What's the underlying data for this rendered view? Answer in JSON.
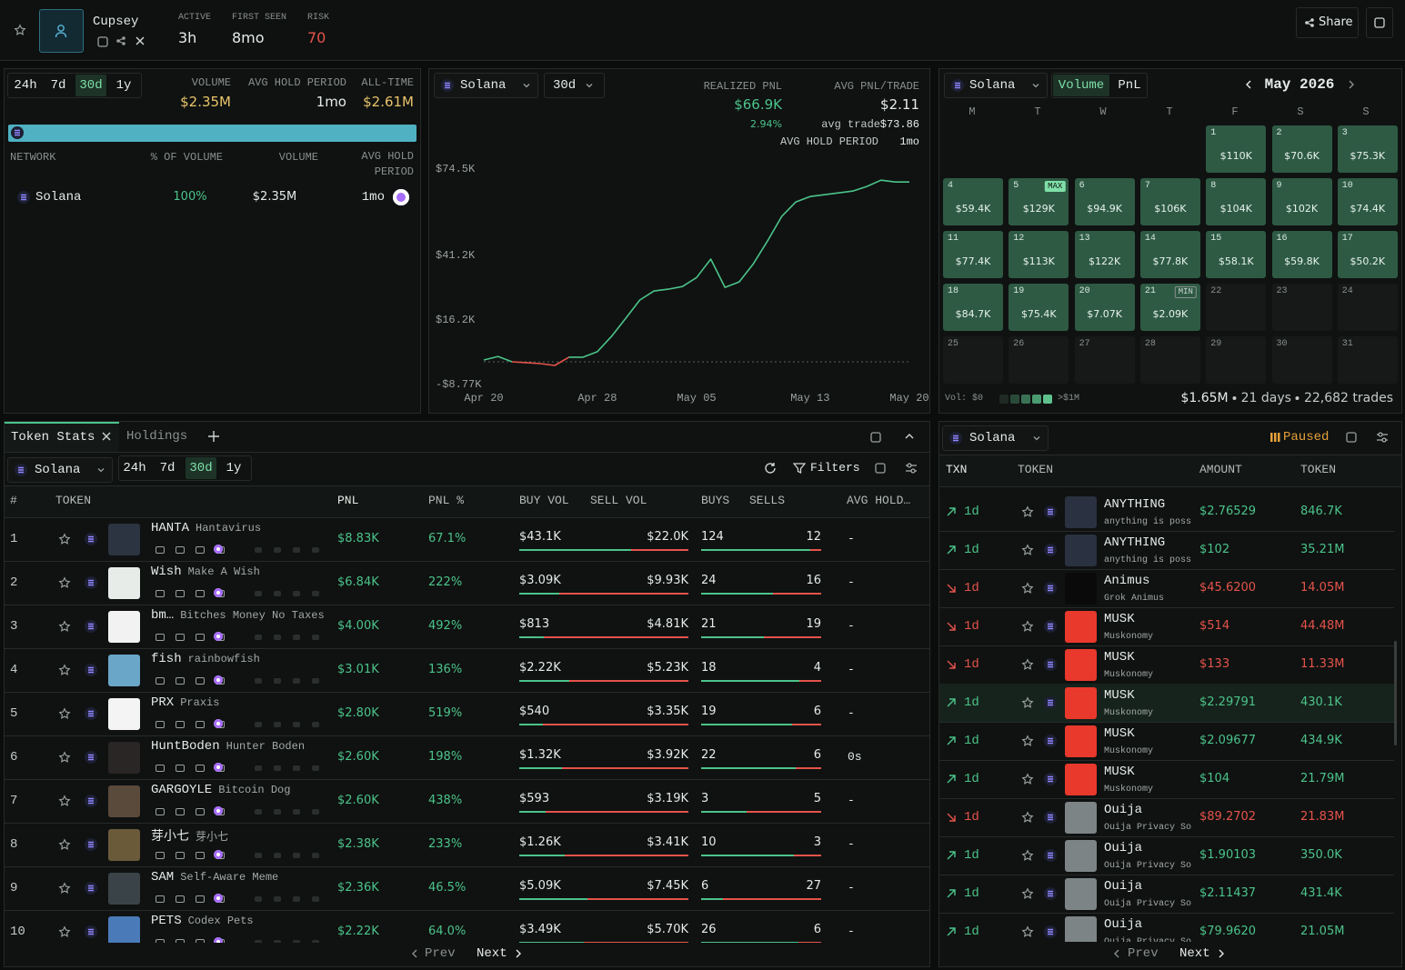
{
  "header": {
    "name": "Cupsey",
    "stats": [
      {
        "label": "ACTIVE",
        "value": "3h"
      },
      {
        "label": "FIRST SEEN",
        "value": "8mo"
      },
      {
        "label": "RISK",
        "value": "70"
      }
    ],
    "share": "Share"
  },
  "volume_panel": {
    "timeframes": [
      "24h",
      "7d",
      "30d",
      "1y"
    ],
    "selected": 2,
    "stats": [
      {
        "label": "VOLUME",
        "value": "$2.35M"
      },
      {
        "label": "AVG HOLD PERIOD",
        "value": "1mo"
      },
      {
        "label": "ALL-TIME",
        "value": "$2.61M"
      }
    ],
    "columns": [
      "NETWORK",
      "% OF VOLUME",
      "VOLUME",
      "AVG HOLD PERIOD"
    ],
    "rows": [
      {
        "network": "Solana",
        "share": "100%",
        "volume": "$2.35M",
        "hold": "1mo"
      }
    ]
  },
  "pnl_panel": {
    "network": "Solana",
    "period": "30d",
    "realized_label": "REALIZED PNL",
    "realized": "$66.9K",
    "realized_pct": "2.94%",
    "avg_label": "AVG PNL/TRADE",
    "avg": "$2.11",
    "avg_trade_label": "avg trade",
    "avg_trade": "$73.86",
    "hold_label": "AVG HOLD PERIOD",
    "hold": "1mo"
  },
  "chart_data": {
    "type": "line",
    "color": "#4cc38a",
    "negative_color": "#e5534b",
    "categories": [
      "Apr 20",
      null,
      null,
      null,
      null,
      null,
      null,
      null,
      "Apr 28",
      null,
      null,
      null,
      null,
      null,
      null,
      "May 05",
      null,
      null,
      null,
      null,
      null,
      null,
      null,
      "May 13",
      null,
      null,
      null,
      null,
      null,
      null,
      "May 20"
    ],
    "values": [
      700,
      2100,
      0,
      -300,
      -700,
      -1400,
      1800,
      1800,
      3900,
      9800,
      16800,
      23900,
      27400,
      28100,
      29100,
      32600,
      39700,
      28800,
      30900,
      37900,
      46700,
      56200,
      61800,
      63900,
      64600,
      65300,
      66000,
      67800,
      70200,
      69500,
      69500
    ],
    "ylim": [
      -8770,
      74500
    ],
    "yticks": [
      {
        "value": 74500,
        "label": "$74.5K"
      },
      {
        "value": 41200,
        "label": "$41.2K"
      },
      {
        "value": 16200,
        "label": "$16.2K"
      },
      {
        "value": -8770,
        "label": "-$8.77K"
      }
    ],
    "grid": false
  },
  "calendar": {
    "network": "Solana",
    "tabs": [
      "Volume",
      "PnL"
    ],
    "selected": 0,
    "month": "May 2026",
    "weekdays": [
      "M",
      "T",
      "W",
      "T",
      "F",
      "S",
      "S"
    ],
    "first_weekday": 4,
    "days": [
      {
        "day": 1,
        "value": "$110K"
      },
      {
        "day": 2,
        "value": "$70.6K"
      },
      {
        "day": 3,
        "value": "$75.3K"
      },
      {
        "day": 4,
        "value": "$59.4K"
      },
      {
        "day": 5,
        "value": "$129K",
        "badge": "MAX"
      },
      {
        "day": 6,
        "value": "$94.9K"
      },
      {
        "day": 7,
        "value": "$106K"
      },
      {
        "day": 8,
        "value": "$104K"
      },
      {
        "day": 9,
        "value": "$102K"
      },
      {
        "day": 10,
        "value": "$74.4K"
      },
      {
        "day": 11,
        "value": "$77.4K"
      },
      {
        "day": 12,
        "value": "$113K"
      },
      {
        "day": 13,
        "value": "$122K"
      },
      {
        "day": 14,
        "value": "$77.8K"
      },
      {
        "day": 15,
        "value": "$58.1K"
      },
      {
        "day": 16,
        "value": "$59.8K"
      },
      {
        "day": 17,
        "value": "$50.2K"
      },
      {
        "day": 18,
        "value": "$84.7K"
      },
      {
        "day": 19,
        "value": "$75.4K"
      },
      {
        "day": 20,
        "value": "$7.07K"
      },
      {
        "day": 21,
        "value": "$2.09K",
        "badge": "MIN"
      },
      {
        "day": 22
      },
      {
        "day": 23
      },
      {
        "day": 24
      },
      {
        "day": 25
      },
      {
        "day": 26
      },
      {
        "day": 27
      },
      {
        "day": 28
      },
      {
        "day": 29
      },
      {
        "day": 30
      },
      {
        "day": 31
      }
    ],
    "legend_low": "Vol: $0",
    "legend_high": ">$1M",
    "total": "$1.65M",
    "days_label": "21 days",
    "trades": "22,682 trades"
  },
  "token_stats": {
    "tabs": [
      "Token Stats",
      "Holdings"
    ],
    "network": "Solana",
    "timeframes": [
      "24h",
      "7d",
      "30d",
      "1y"
    ],
    "selected": 2,
    "filters": "Filters",
    "columns": [
      "#",
      "TOKEN",
      "PNL",
      "PNL %",
      "BUY VOL",
      "SELL VOL",
      "BUYS",
      "SELLS",
      "AVG HOLD…"
    ],
    "rows": [
      {
        "rank": 1,
        "symbol": "HANTA",
        "name": "Hantavirus",
        "pnl": "$8.83K",
        "pnl_pct": "67.1%",
        "buy_vol": 43100,
        "buy_vol_label": "$43.1K",
        "sell_vol": 22000,
        "sell_vol_label": "$22.0K",
        "buys": 124,
        "sells": 12,
        "hold": "-"
      },
      {
        "rank": 2,
        "symbol": "Wish",
        "name": "Make A Wish",
        "pnl": "$6.84K",
        "pnl_pct": "222%",
        "buy_vol": 3090,
        "buy_vol_label": "$3.09K",
        "sell_vol": 9930,
        "sell_vol_label": "$9.93K",
        "buys": 24,
        "sells": 16,
        "hold": "-"
      },
      {
        "rank": 3,
        "symbol": "bm…",
        "name": "Bitches Money No Taxes",
        "pnl": "$4.00K",
        "pnl_pct": "492%",
        "buy_vol": 813,
        "buy_vol_label": "$813",
        "sell_vol": 4810,
        "sell_vol_label": "$4.81K",
        "buys": 21,
        "sells": 19,
        "hold": "-"
      },
      {
        "rank": 4,
        "symbol": "fish",
        "name": "rainbowfish",
        "pnl": "$3.01K",
        "pnl_pct": "136%",
        "buy_vol": 2220,
        "buy_vol_label": "$2.22K",
        "sell_vol": 5230,
        "sell_vol_label": "$5.23K",
        "buys": 18,
        "sells": 4,
        "hold": "-"
      },
      {
        "rank": 5,
        "symbol": "PRX",
        "name": "Praxis",
        "pnl": "$2.80K",
        "pnl_pct": "519%",
        "buy_vol": 540,
        "buy_vol_label": "$540",
        "sell_vol": 3350,
        "sell_vol_label": "$3.35K",
        "buys": 19,
        "sells": 6,
        "hold": "-"
      },
      {
        "rank": 6,
        "symbol": "HuntBoden",
        "name": "Hunter Boden",
        "pnl": "$2.60K",
        "pnl_pct": "198%",
        "buy_vol": 1320,
        "buy_vol_label": "$1.32K",
        "sell_vol": 3920,
        "sell_vol_label": "$3.92K",
        "buys": 22,
        "sells": 6,
        "hold": "0s"
      },
      {
        "rank": 7,
        "symbol": "GARGOYLE",
        "name": "Bitcoin Dog",
        "pnl": "$2.60K",
        "pnl_pct": "438%",
        "buy_vol": 593,
        "buy_vol_label": "$593",
        "sell_vol": 3190,
        "sell_vol_label": "$3.19K",
        "buys": 3,
        "sells": 5,
        "hold": "-"
      },
      {
        "rank": 8,
        "symbol": "芽小七",
        "name": "芽小七",
        "pnl": "$2.38K",
        "pnl_pct": "233%",
        "buy_vol": 1260,
        "buy_vol_label": "$1.26K",
        "sell_vol": 3410,
        "sell_vol_label": "$3.41K",
        "buys": 10,
        "sells": 3,
        "hold": "-"
      },
      {
        "rank": 9,
        "symbol": "SAM",
        "name": "Self-Aware Meme",
        "pnl": "$2.36K",
        "pnl_pct": "46.5%",
        "buy_vol": 5090,
        "buy_vol_label": "$5.09K",
        "sell_vol": 7450,
        "sell_vol_label": "$7.45K",
        "buys": 6,
        "sells": 27,
        "hold": "-"
      },
      {
        "rank": 10,
        "symbol": "PETS",
        "name": "Codex Pets",
        "pnl": "$2.22K",
        "pnl_pct": "64.0%",
        "buy_vol": 3490,
        "buy_vol_label": "$3.49K",
        "sell_vol": 5700,
        "sell_vol_label": "$5.70K",
        "buys": 26,
        "sells": 6,
        "hold": "-"
      }
    ],
    "prev": "Prev",
    "next": "Next"
  },
  "transactions": {
    "network": "Solana",
    "status": "Paused",
    "columns": [
      "TXN",
      "TOKEN",
      "AMOUNT",
      "TOKEN"
    ],
    "highlight": 5,
    "rows": [
      {
        "side": "buy",
        "age": "1d",
        "symbol": "ANYTHING",
        "name": "anything is poss.",
        "amount": "$2.76529",
        "tokens": "846.7K"
      },
      {
        "side": "buy",
        "age": "1d",
        "symbol": "ANYTHING",
        "name": "anything is poss.",
        "amount": "$102",
        "tokens": "35.21M"
      },
      {
        "side": "sell",
        "age": "1d",
        "symbol": "Animus",
        "name": "Grok Animus",
        "amount": "$45.6200",
        "tokens": "14.05M"
      },
      {
        "side": "sell",
        "age": "1d",
        "symbol": "MUSK",
        "name": "Muskonomy",
        "amount": "$514",
        "tokens": "44.48M"
      },
      {
        "side": "sell",
        "age": "1d",
        "symbol": "MUSK",
        "name": "Muskonomy",
        "amount": "$133",
        "tokens": "11.33M"
      },
      {
        "side": "buy",
        "age": "1d",
        "symbol": "MUSK",
        "name": "Muskonomy",
        "amount": "$2.29791",
        "tokens": "430.1K"
      },
      {
        "side": "buy",
        "age": "1d",
        "symbol": "MUSK",
        "name": "Muskonomy",
        "amount": "$2.09677",
        "tokens": "434.9K"
      },
      {
        "side": "buy",
        "age": "1d",
        "symbol": "MUSK",
        "name": "Muskonomy",
        "amount": "$104",
        "tokens": "21.79M"
      },
      {
        "side": "sell",
        "age": "1d",
        "symbol": "Ouija",
        "name": "Ouija Privacy So.",
        "amount": "$89.2702",
        "tokens": "21.83M"
      },
      {
        "side": "buy",
        "age": "1d",
        "symbol": "Ouija",
        "name": "Ouija Privacy So.",
        "amount": "$1.90103",
        "tokens": "350.0K"
      },
      {
        "side": "buy",
        "age": "1d",
        "symbol": "Ouija",
        "name": "Ouija Privacy So.",
        "amount": "$2.11437",
        "tokens": "431.4K"
      },
      {
        "side": "buy",
        "age": "1d",
        "symbol": "Ouija",
        "name": "Ouija Privacy So.",
        "amount": "$79.9620",
        "tokens": "21.05M"
      }
    ],
    "prev": "Prev",
    "next": "Next"
  }
}
